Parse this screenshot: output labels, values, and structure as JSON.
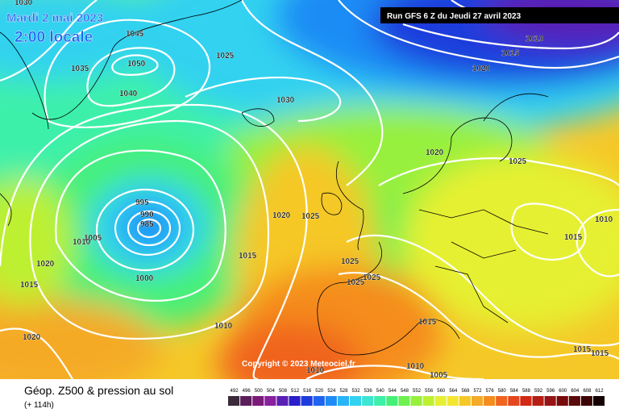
{
  "header": {
    "date": "Mardi 2 mai 2023",
    "time": "2:00 locale",
    "run": "Run GFS 6 Z du Jeudi 27 avril 2023"
  },
  "copyright": "Copyright © 2023 Meteociel.fr",
  "footer": {
    "title": "Géop. Z500 & pression au sol",
    "subtitle": "(+ 114h)"
  },
  "isobar_labels": [
    "1030",
    "1045",
    "1050",
    "1035",
    "1040",
    "1025",
    "1030",
    "1020",
    "1015",
    "1010",
    "1020",
    "1025",
    "1020",
    "1025",
    "1010",
    "995",
    "990",
    "985",
    "1005",
    "1010",
    "1015",
    "1015",
    "1020",
    "1015",
    "1025",
    "1025",
    "1025",
    "1000",
    "1010",
    "1015",
    "1020",
    "1015",
    "1015",
    "1010",
    "1005",
    "1010"
  ],
  "legend": {
    "ticks": [
      492,
      496,
      500,
      504,
      508,
      512,
      516,
      520,
      524,
      528,
      532,
      536,
      540,
      544,
      548,
      552,
      556,
      560,
      564,
      568,
      572,
      576,
      580,
      584,
      588,
      592,
      596,
      600,
      604,
      608,
      612
    ],
    "colors": [
      "#3a2a3a",
      "#5a1f5a",
      "#7a1a7a",
      "#8a1fa0",
      "#5a1fb4",
      "#2a1fc8",
      "#1e3cdc",
      "#1e64f0",
      "#1e8cf5",
      "#28b4f5",
      "#32d2f0",
      "#3ce6d2",
      "#3cf0aa",
      "#46f078",
      "#6ef050",
      "#96f03c",
      "#bef032",
      "#e6f032",
      "#f5e632",
      "#f5c828",
      "#f5aa28",
      "#f58c1e",
      "#f0641e",
      "#e6461e",
      "#d22814",
      "#b41e14",
      "#961414",
      "#780a0a",
      "#5a0a0a",
      "#3c0505",
      "#140000"
    ]
  }
}
